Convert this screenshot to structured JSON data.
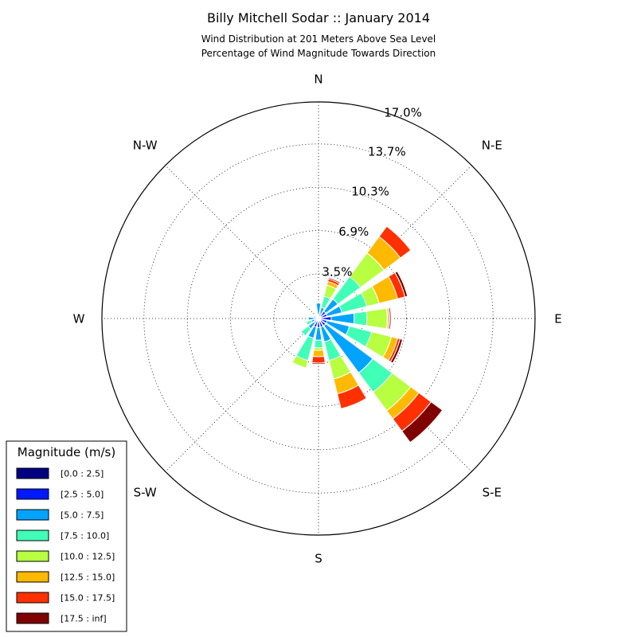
{
  "chart_data": {
    "type": "windrose",
    "title": "Billy Mitchell Sodar :: January 2014",
    "subtitle_lines": [
      "Wind Distribution at 201 Meters Above Sea Level",
      "Percentage of Wind Magnitude Towards Direction"
    ],
    "directions": [
      "N",
      "N-E",
      "E",
      "S-E",
      "S",
      "S-W",
      "W",
      "N-W"
    ],
    "radial_ticks": [
      "3.5%",
      "6.9%",
      "10.3%",
      "13.7%",
      "17.0%"
    ],
    "radial_tick_values": [
      3.5,
      6.9,
      10.3,
      13.7,
      17.0
    ],
    "rmax": 17.0,
    "grid": true,
    "legend": {
      "title": "Magnitude (m/s)",
      "placement": "lower-left"
    },
    "bins": [
      {
        "label": "[0.0 : 2.5]",
        "color": "#000080"
      },
      {
        "label": "[2.5 : 5.0]",
        "color": "#0019ff"
      },
      {
        "label": "[5.0 : 7.5]",
        "color": "#00a4ff"
      },
      {
        "label": "[7.5 : 10.0]",
        "color": "#40ffb7"
      },
      {
        "label": "[10.0 : 12.5]",
        "color": "#b7ff40"
      },
      {
        "label": "[12.5 : 15.0]",
        "color": "#ffb900"
      },
      {
        "label": "[15.0 : 17.5]",
        "color": "#ff3000"
      },
      {
        "label": "[17.5 : inf]",
        "color": "#800000"
      }
    ],
    "sectors": [
      {
        "direction_deg": 0,
        "values": [
          0.1,
          0.2,
          0.9,
          0.0,
          0.0,
          0.0,
          0.0,
          0.0
        ]
      },
      {
        "direction_deg": 22.5,
        "values": [
          0.1,
          0.3,
          0.5,
          0.9,
          0.9,
          0.3,
          0.2,
          0.1
        ]
      },
      {
        "direction_deg": 45,
        "values": [
          0.2,
          0.5,
          1.2,
          2.2,
          2.3,
          1.6,
          1.0,
          0.0
        ]
      },
      {
        "direction_deg": 67.5,
        "values": [
          0.2,
          0.5,
          1.2,
          2.0,
          1.0,
          1.5,
          0.6,
          0.2
        ]
      },
      {
        "direction_deg": 90,
        "values": [
          0.2,
          0.8,
          1.8,
          1.0,
          1.6,
          0.1,
          0.1,
          0.1
        ]
      },
      {
        "direction_deg": 112.5,
        "values": [
          0.2,
          0.5,
          1.8,
          1.8,
          1.6,
          0.5,
          0.2,
          0.2
        ]
      },
      {
        "direction_deg": 135,
        "values": [
          0.2,
          0.5,
          4.6,
          1.9,
          1.8,
          0.8,
          1.2,
          1.1
        ]
      },
      {
        "direction_deg": 157.5,
        "values": [
          0.2,
          0.5,
          1.2,
          1.5,
          1.5,
          1.2,
          1.2,
          0.0
        ]
      },
      {
        "direction_deg": 180,
        "values": [
          0.1,
          0.6,
          1.0,
          0.6,
          0.2,
          0.5,
          0.5,
          0.1
        ]
      },
      {
        "direction_deg": 202.5,
        "values": [
          0.1,
          0.6,
          0.9,
          1.8,
          0.6,
          0.0,
          0.0,
          0.0
        ]
      },
      {
        "direction_deg": 225,
        "values": [
          0.1,
          0.3,
          0.6,
          0.7,
          0.0,
          0.0,
          0.0,
          0.0
        ]
      },
      {
        "direction_deg": 247.5,
        "values": [
          0.1,
          0.2,
          0.3,
          0.4,
          0.0,
          0.0,
          0.0,
          0.0
        ]
      },
      {
        "direction_deg": 270,
        "values": [
          0.1,
          0.2,
          0.5,
          0.0,
          0.0,
          0.0,
          0.0,
          0.0
        ]
      },
      {
        "direction_deg": 292.5,
        "values": [
          0.1,
          0.1,
          0.2,
          0.0,
          0.0,
          0.0,
          0.0,
          0.0
        ]
      },
      {
        "direction_deg": 315,
        "values": [
          0.1,
          0.1,
          0.1,
          0.0,
          0.0,
          0.0,
          0.0,
          0.0
        ]
      },
      {
        "direction_deg": 337.5,
        "values": [
          0.1,
          0.1,
          0.1,
          0.0,
          0.0,
          0.0,
          0.0,
          0.0
        ]
      }
    ]
  }
}
